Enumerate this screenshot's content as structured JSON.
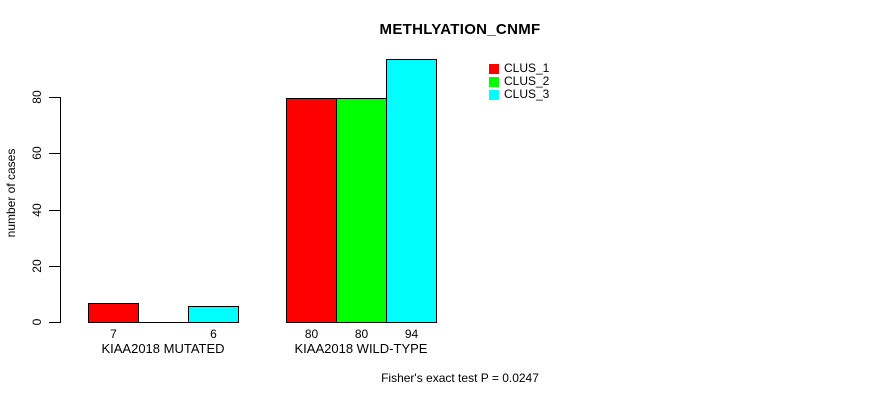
{
  "chart_data": {
    "type": "bar",
    "title": "METHLYATION_CNMF",
    "ylabel": "number of cases",
    "xlabel": "",
    "yticks": [
      0,
      20,
      40,
      60,
      80
    ],
    "ylim": [
      0,
      94
    ],
    "grid": false,
    "legend_position": "top-right",
    "series": [
      {
        "name": "CLUS_1",
        "color": "#FF0000"
      },
      {
        "name": "CLUS_2",
        "color": "#00FF00"
      },
      {
        "name": "CLUS_3",
        "color": "#00FFFF"
      }
    ],
    "groups": [
      {
        "label": "KIAA2018 MUTATED",
        "values": [
          7,
          0,
          6
        ],
        "value_labels": [
          "7",
          "",
          "6"
        ]
      },
      {
        "label": "KIAA2018 WILD-TYPE",
        "values": [
          80,
          80,
          94
        ],
        "value_labels": [
          "80",
          "80",
          "94"
        ]
      }
    ],
    "footnote": "Fisher's exact test P = 0.0247"
  }
}
